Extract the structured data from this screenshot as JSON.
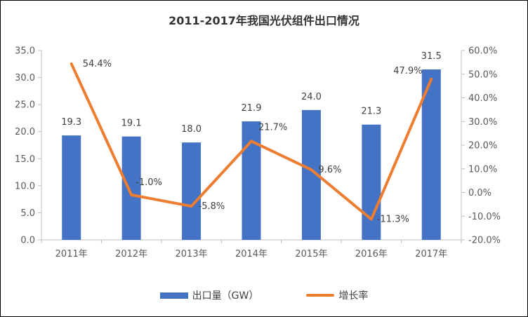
{
  "chart_data": {
    "type": "bar",
    "title": "2011-2017年我国光伏组件出口情况",
    "categories": [
      "2011年",
      "2012年",
      "2013年",
      "2014年",
      "2015年",
      "2016年",
      "2017年"
    ],
    "series": [
      {
        "name": "出口量（GW）",
        "type": "bar",
        "axis": "left",
        "values": [
          19.3,
          19.1,
          18.0,
          21.9,
          24.0,
          21.3,
          31.5
        ],
        "labels": [
          "19.3",
          "19.1",
          "18.0",
          "21.9",
          "24.0",
          "21.3",
          "31.5"
        ],
        "color": "#4472C4"
      },
      {
        "name": "增长率",
        "type": "line",
        "axis": "right",
        "values": [
          54.4,
          -1.0,
          -5.8,
          21.7,
          9.6,
          -11.3,
          47.9
        ],
        "labels": [
          "54.4%",
          "-1.0%",
          "-5.8%",
          "21.7%",
          "9.6%",
          "-11.3%",
          "47.9%"
        ],
        "color": "#ED7D31"
      }
    ],
    "y_left": {
      "ylim": [
        0,
        35
      ],
      "ticks": [
        0,
        5,
        10,
        15,
        20,
        25,
        30,
        35
      ],
      "tick_labels": [
        "0.0",
        "5.0",
        "10.0",
        "15.0",
        "20.0",
        "25.0",
        "30.0",
        "35.0"
      ]
    },
    "y_right": {
      "ylim": [
        -20,
        60
      ],
      "ticks": [
        -20,
        -10,
        0,
        10,
        20,
        30,
        40,
        50,
        60
      ],
      "tick_labels": [
        "-20.0%",
        "-10.0%",
        "0.0%",
        "10.0%",
        "20.0%",
        "30.0%",
        "40.0%",
        "50.0%",
        "60.0%"
      ]
    },
    "grid": false,
    "legend_position": "bottom"
  }
}
